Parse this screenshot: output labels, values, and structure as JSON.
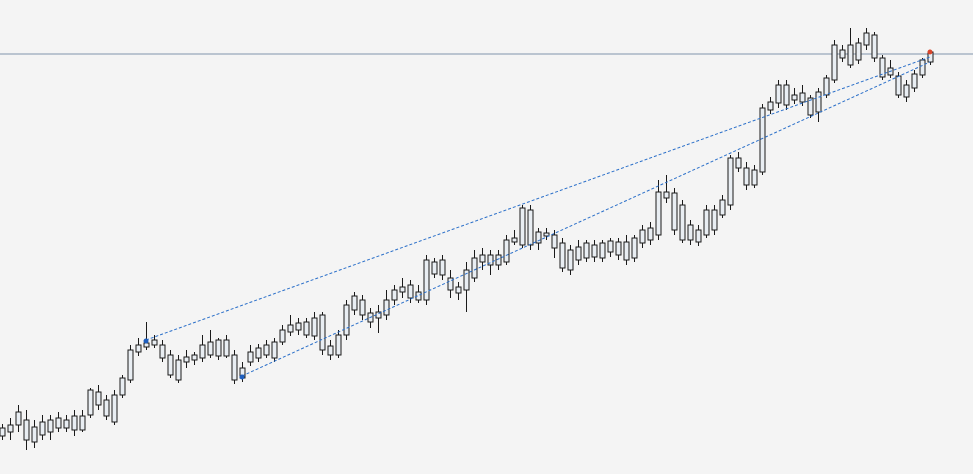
{
  "chart_data": {
    "type": "candlestick",
    "ylim": [
      0,
      474
    ],
    "open": [
      38,
      42,
      49,
      34,
      32,
      39,
      42,
      46,
      46,
      44,
      44,
      59,
      69,
      58,
      52,
      79,
      94,
      122,
      127,
      129,
      116,
      99,
      94,
      112,
      114,
      116,
      119,
      118,
      118,
      94,
      96,
      112,
      116,
      119,
      116,
      132,
      142,
      144,
      139,
      138,
      124,
      119,
      119,
      139,
      164,
      159,
      152,
      156,
      159,
      174,
      182,
      176,
      174,
      174,
      200,
      199,
      184,
      181,
      184,
      196,
      212,
      209,
      209,
      212,
      232,
      229,
      229,
      231,
      238,
      226,
      206,
      204,
      214,
      216,
      217,
      216,
      222,
      219,
      214,
      216,
      231,
      234,
      239,
      276,
      244,
      234,
      234,
      232,
      239,
      244,
      259,
      269,
      306,
      289,
      289,
      302,
      364,
      371,
      369,
      374,
      372,
      359,
      362,
      379,
      394,
      416,
      409,
      414,
      429,
      416,
      397,
      399,
      379,
      377,
      386,
      399,
      412
    ],
    "high": [
      50,
      56,
      69,
      64,
      54,
      59,
      59,
      62,
      59,
      64,
      64,
      86,
      89,
      79,
      84,
      99,
      129,
      136,
      152,
      139,
      134,
      124,
      119,
      124,
      122,
      139,
      144,
      136,
      139,
      124,
      112,
      129,
      130,
      134,
      136,
      149,
      159,
      156,
      156,
      162,
      162,
      134,
      144,
      174,
      182,
      179,
      166,
      169,
      184,
      189,
      196,
      194,
      189,
      219,
      216,
      219,
      204,
      192,
      212,
      224,
      226,
      224,
      224,
      239,
      244,
      269,
      269,
      246,
      246,
      244,
      236,
      229,
      234,
      234,
      234,
      234,
      236,
      236,
      239,
      239,
      249,
      252,
      294,
      299,
      286,
      274,
      254,
      249,
      269,
      269,
      279,
      319,
      322,
      312,
      309,
      370,
      377,
      394,
      394,
      386,
      389,
      379,
      386,
      399,
      434,
      429,
      446,
      436,
      446,
      442,
      419,
      414,
      402,
      394,
      404,
      416,
      424
    ],
    "low": [
      34,
      34,
      42,
      24,
      26,
      34,
      34,
      42,
      42,
      38,
      42,
      56,
      64,
      54,
      49,
      76,
      91,
      118,
      124,
      126,
      112,
      96,
      91,
      106,
      109,
      112,
      116,
      114,
      116,
      90,
      92,
      108,
      112,
      116,
      112,
      129,
      138,
      139,
      136,
      134,
      119,
      114,
      116,
      134,
      159,
      154,
      146,
      141,
      154,
      169,
      176,
      171,
      171,
      169,
      196,
      194,
      176,
      174,
      162,
      192,
      204,
      199,
      204,
      209,
      229,
      226,
      224,
      224,
      234,
      216,
      202,
      199,
      209,
      212,
      212,
      212,
      217,
      214,
      209,
      212,
      226,
      229,
      234,
      271,
      239,
      231,
      229,
      228,
      236,
      239,
      256,
      264,
      302,
      284,
      286,
      299,
      360,
      366,
      364,
      370,
      368,
      356,
      352,
      376,
      391,
      412,
      406,
      410,
      424,
      412,
      394,
      396,
      376,
      372,
      382,
      396,
      409
    ],
    "close": [
      46,
      49,
      62,
      54,
      47,
      52,
      54,
      56,
      54,
      58,
      58,
      84,
      82,
      74,
      79,
      96,
      124,
      129,
      131,
      134,
      129,
      119,
      114,
      117,
      119,
      129,
      132,
      134,
      134,
      119,
      106,
      122,
      126,
      129,
      132,
      144,
      149,
      151,
      152,
      156,
      159,
      128,
      139,
      169,
      178,
      174,
      161,
      162,
      174,
      184,
      187,
      189,
      182,
      214,
      212,
      214,
      196,
      187,
      204,
      216,
      219,
      219,
      219,
      234,
      236,
      266,
      264,
      242,
      241,
      239,
      231,
      224,
      227,
      231,
      229,
      231,
      233,
      232,
      232,
      236,
      244,
      246,
      282,
      282,
      281,
      269,
      249,
      244,
      264,
      264,
      274,
      316,
      316,
      306,
      304,
      366,
      372,
      389,
      389,
      379,
      381,
      376,
      382,
      396,
      429,
      424,
      429,
      431,
      441,
      439,
      416,
      406,
      398,
      389,
      400,
      414,
      422
    ],
    "hline": 420,
    "trendlines": [
      {
        "start": 18,
        "end": 116,
        "values": [
          134,
          417
        ]
      },
      {
        "start": 30,
        "end": 116,
        "values": [
          98,
          412
        ]
      }
    ],
    "markers": [
      {
        "index": 18,
        "value": 133,
        "color": "#1f5fbf"
      },
      {
        "index": 30,
        "value": 97,
        "color": "#1f5fbf"
      },
      {
        "index": 116,
        "value": 422,
        "color": "#d9462b"
      }
    ],
    "candle_color": "#e9eef3",
    "outline_color": "#1a1a1a",
    "line_color": "#2a6fc9",
    "hline_color": "#7f95ad"
  }
}
